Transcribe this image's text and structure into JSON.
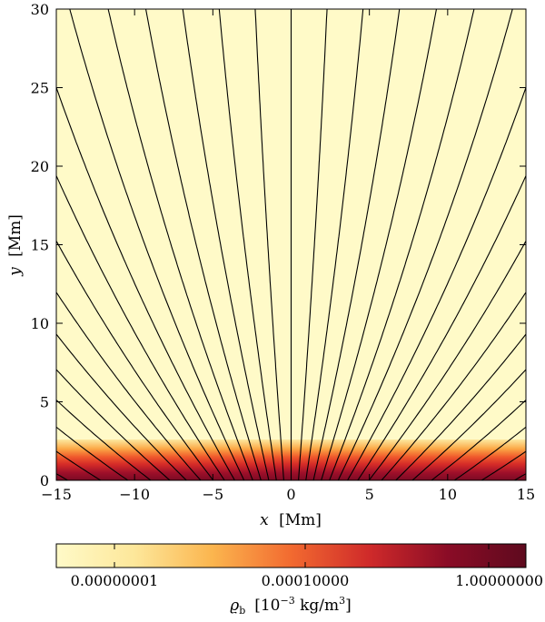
{
  "chart_data": {
    "type": "heatmap",
    "title": "",
    "xlabel": {
      "var": "x",
      "unit": "[Mm]"
    },
    "ylabel": {
      "var": "y",
      "unit": "[Mm]"
    },
    "xlim": [
      -15,
      15
    ],
    "ylim": [
      0,
      30
    ],
    "xticks": [
      "−15",
      "−10",
      "−5",
      "0",
      "5",
      "10",
      "15"
    ],
    "yticks": [
      "0",
      "5",
      "10",
      "15",
      "20",
      "25",
      "30"
    ],
    "field_lines": {
      "description": "magnetic field lines fanning out from the origin",
      "count": 39,
      "color": "#000000"
    },
    "density_layer": {
      "top_y": 2.6,
      "profile": [
        {
          "y": 0.0,
          "color": "#7a0a24"
        },
        {
          "y": 0.5,
          "color": "#a0102a"
        },
        {
          "y": 1.0,
          "color": "#d42a28"
        },
        {
          "y": 1.5,
          "color": "#f05a2c"
        },
        {
          "y": 2.0,
          "color": "#fba745"
        },
        {
          "y": 2.6,
          "color": "#fde9a0"
        }
      ],
      "background_color": "#fffac8"
    },
    "colorbar": {
      "scale": "log",
      "tick_labels": [
        "0.00000001",
        "0.00010000",
        "1.00000000"
      ],
      "label_symbol": "ϱ",
      "label_sub": "b",
      "label_unit_pre": "[10",
      "label_unit_exp1": "−3",
      "label_unit_mid": " kg/m",
      "label_unit_exp2": "3",
      "label_unit_post": "]",
      "colors": [
        "#fffac8",
        "#fde79a",
        "#fbb54e",
        "#f26a30",
        "#cf2a2a",
        "#8a0c26",
        "#5e0a1e"
      ]
    }
  }
}
